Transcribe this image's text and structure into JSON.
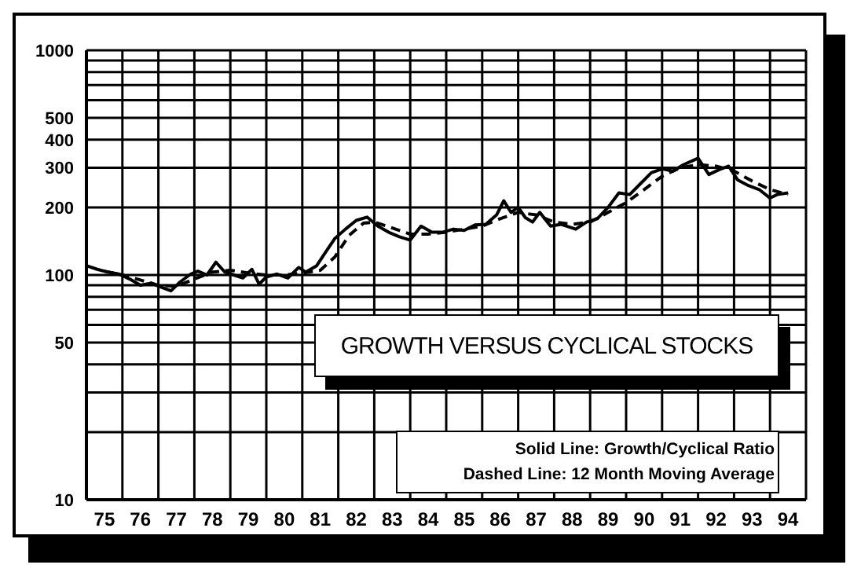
{
  "chart_data": {
    "type": "line",
    "title": "GROWTH VERSUS CYCLICAL STOCKS",
    "annotations": [
      "Solid Line: Growth/Cyclical Ratio",
      "Dashed Line: 12 Month Moving Average"
    ],
    "log": "y",
    "grid": true,
    "xlim": [
      74.5,
      94.5
    ],
    "xticks": [
      {
        "value": 74.5,
        "label": null
      },
      75,
      {
        "value": 75.5,
        "label": null
      },
      76,
      {
        "value": 76.5,
        "label": null
      },
      77,
      {
        "value": 77.5,
        "label": null
      },
      78,
      {
        "value": 78.5,
        "label": null
      },
      79,
      {
        "value": 79.5,
        "label": null
      },
      80,
      {
        "value": 80.5,
        "label": null
      },
      81,
      {
        "value": 81.5,
        "label": null
      },
      82,
      {
        "value": 82.5,
        "label": null
      },
      83,
      {
        "value": 83.5,
        "label": null
      },
      84,
      {
        "value": 84.5,
        "label": null
      },
      85,
      {
        "value": 85.5,
        "label": null
      },
      86,
      {
        "value": 86.5,
        "label": null
      },
      87,
      {
        "value": 87.5,
        "label": null
      },
      88,
      {
        "value": 88.5,
        "label": null
      },
      89,
      {
        "value": 89.5,
        "label": null
      },
      90,
      {
        "value": 90.5,
        "label": null
      },
      91,
      {
        "value": 91.5,
        "label": null
      },
      92,
      {
        "value": 92.5,
        "label": null
      },
      93,
      {
        "value": 93.5,
        "label": null
      },
      94,
      {
        "value": 94.5,
        "label": null
      }
    ],
    "ylim": [
      10,
      1000
    ],
    "yticks": [
      10,
      {
        "value": 20,
        "label": null
      },
      {
        "value": 30,
        "label": null
      },
      {
        "value": 40,
        "label": null
      },
      50,
      {
        "value": 60,
        "label": null
      },
      {
        "value": 70,
        "label": null
      },
      {
        "value": 80,
        "label": null
      },
      {
        "value": 90,
        "label": null
      },
      100,
      200,
      300,
      400,
      500,
      {
        "value": 600,
        "label": null
      },
      {
        "value": 700,
        "label": null
      },
      {
        "value": 800,
        "label": null
      },
      {
        "value": 900,
        "label": null
      },
      1000
    ],
    "series": [
      {
        "color": "#000000",
        "line_style": "solid",
        "x": [
          74.5,
          74.8,
          75.1,
          75.4,
          75.7,
          76.0,
          76.3,
          76.6,
          76.85,
          77.1,
          77.4,
          77.6,
          77.85,
          78.1,
          78.35,
          78.6,
          78.85,
          79.1,
          79.3,
          79.5,
          79.8,
          80.1,
          80.4,
          80.6,
          80.9,
          81.2,
          81.4,
          81.7,
          82.0,
          82.3,
          82.6,
          82.9,
          83.2,
          83.5,
          83.8,
          84.1,
          84.4,
          84.7,
          85.0,
          85.3,
          85.6,
          85.9,
          86.1,
          86.3,
          86.5,
          86.7,
          86.9,
          87.1,
          87.4,
          87.7,
          88.1,
          88.4,
          88.7,
          89.0,
          89.3,
          89.6,
          89.9,
          90.2,
          90.5,
          90.8,
          91.1,
          91.5,
          91.8,
          92.1,
          92.35,
          92.6,
          92.9,
          93.2,
          93.5,
          93.7,
          94.0
        ],
        "values": [
          110,
          106,
          103,
          101,
          96,
          90,
          92,
          88,
          85,
          93,
          101,
          104,
          100,
          114,
          103,
          100,
          97,
          106,
          91,
          98,
          101,
          97,
          108,
          103,
          110,
          130,
          145,
          160,
          175,
          181,
          165,
          155,
          148,
          143,
          165,
          155,
          155,
          160,
          158,
          167,
          168,
          185,
          214,
          190,
          200,
          180,
          172,
          190,
          165,
          168,
          160,
          172,
          178,
          200,
          232,
          228,
          255,
          285,
          297,
          290,
          310,
          331,
          280,
          295,
          305,
          265,
          250,
          240,
          220,
          228,
          232
        ]
      },
      {
        "color": "#000000",
        "line_style": "dashed",
        "x": [
          75.0,
          75.5,
          76.0,
          76.5,
          77.0,
          77.5,
          78.0,
          78.5,
          79.0,
          79.5,
          80.0,
          80.5,
          81.0,
          81.4,
          81.8,
          82.2,
          82.5,
          83.0,
          83.5,
          84.0,
          84.5,
          85.0,
          85.5,
          86.0,
          86.5,
          87.0,
          87.5,
          88.0,
          88.5,
          89.0,
          89.5,
          90.0,
          90.5,
          91.0,
          91.5,
          92.0,
          92.5,
          93.0,
          93.5,
          94.0
        ],
        "values": [
          104,
          100,
          95,
          90,
          89,
          96,
          103,
          105,
          102,
          100,
          100,
          102,
          105,
          120,
          150,
          170,
          172,
          162,
          152,
          152,
          155,
          160,
          165,
          178,
          190,
          185,
          172,
          168,
          172,
          190,
          210,
          240,
          275,
          300,
          310,
          305,
          290,
          262,
          240,
          228
        ]
      }
    ]
  }
}
